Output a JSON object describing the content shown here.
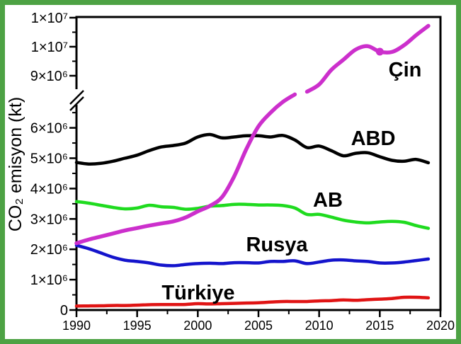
{
  "frame": {
    "border_color": "#4DA244",
    "background": "#FFFFFF"
  },
  "chart_data": {
    "type": "line",
    "title": "",
    "xlabel": "",
    "ylabel": "CO₂ emisyon (kt)",
    "x_range": [
      1990,
      2020
    ],
    "x_major_ticks": [
      1990,
      1995,
      2000,
      2005,
      2010,
      2015,
      2020
    ],
    "x_tick_labels": [
      "1990",
      "1995",
      "2000",
      "2005",
      "2010",
      "2015",
      "2020"
    ],
    "x_minor_ticks": [
      1992.5,
      1997.5,
      2002.5,
      2007.5,
      2012.5,
      2017.5
    ],
    "y_axis_break": {
      "lower_panel_max": 6500000,
      "upper_panel_min": 8500000
    },
    "y_lower_major_ticks": [
      0,
      1000000,
      2000000,
      3000000,
      4000000,
      5000000,
      6000000
    ],
    "y_lower_tick_labels": [
      "0",
      "1×10⁶",
      "2×10⁶",
      "3×10⁶",
      "4×10⁶",
      "5×10⁶",
      "6×10⁶"
    ],
    "y_lower_minor_ticks": [
      500000,
      1500000,
      2500000,
      3500000,
      4500000,
      5500000,
      6500000
    ],
    "y_upper_major_ticks": [
      9000000,
      10000000,
      11000000
    ],
    "y_upper_tick_labels": [
      "9×10⁶",
      "1×10⁷",
      "1×10⁷"
    ],
    "y_upper_minor_ticks": [
      9500000,
      10500000
    ],
    "legend_position": "inline-labels",
    "grid": false,
    "years": [
      1990,
      1991,
      1992,
      1993,
      1994,
      1995,
      1996,
      1997,
      1998,
      1999,
      2000,
      2001,
      2002,
      2003,
      2004,
      2005,
      2006,
      2007,
      2008,
      2009,
      2010,
      2011,
      2012,
      2013,
      2014,
      2015,
      2016,
      2017,
      2018,
      2019
    ],
    "series": [
      {
        "id": "abd",
        "name": "ABD",
        "color": "#000000",
        "line_width": 4.5,
        "values": [
          4860000,
          4810000,
          4830000,
          4900000,
          5000000,
          5100000,
          5250000,
          5370000,
          5420000,
          5500000,
          5700000,
          5780000,
          5670000,
          5700000,
          5740000,
          5740000,
          5700000,
          5750000,
          5600000,
          5350000,
          5400000,
          5250000,
          5080000,
          5160000,
          5180000,
          5050000,
          4930000,
          4900000,
          4960000,
          4850000
        ]
      },
      {
        "id": "ab",
        "name": "AB",
        "color": "#1FDB1F",
        "line_width": 4.5,
        "values": [
          3570000,
          3520000,
          3450000,
          3380000,
          3330000,
          3360000,
          3450000,
          3400000,
          3380000,
          3320000,
          3350000,
          3420000,
          3440000,
          3480000,
          3480000,
          3460000,
          3460000,
          3440000,
          3360000,
          3150000,
          3150000,
          3060000,
          2960000,
          2900000,
          2870000,
          2900000,
          2920000,
          2890000,
          2780000,
          2690000
        ]
      },
      {
        "id": "rusya",
        "name": "Rusya",
        "color": "#1414CC",
        "line_width": 4.5,
        "values": [
          2130000,
          2020000,
          1880000,
          1740000,
          1640000,
          1600000,
          1550000,
          1480000,
          1460000,
          1500000,
          1530000,
          1540000,
          1530000,
          1560000,
          1560000,
          1550000,
          1600000,
          1600000,
          1620000,
          1530000,
          1580000,
          1640000,
          1650000,
          1620000,
          1600000,
          1550000,
          1550000,
          1580000,
          1630000,
          1680000
        ]
      },
      {
        "id": "turkiye",
        "name": "Türkiye",
        "color": "#E01414",
        "line_width": 4.5,
        "values": [
          130000,
          135000,
          140000,
          150000,
          150000,
          160000,
          175000,
          180000,
          180000,
          185000,
          210000,
          200000,
          210000,
          220000,
          230000,
          240000,
          260000,
          280000,
          280000,
          280000,
          300000,
          310000,
          330000,
          320000,
          340000,
          360000,
          380000,
          420000,
          420000,
          400000
        ]
      },
      {
        "id": "cin",
        "name": "Çin",
        "color": "#CC2FCC",
        "line_width": 5.5,
        "values": [
          2200000,
          2320000,
          2420000,
          2520000,
          2620000,
          2700000,
          2780000,
          2850000,
          2920000,
          3050000,
          3250000,
          3430000,
          3720000,
          4400000,
          5300000,
          6050000,
          6500000,
          6850000,
          7100000,
          8450000,
          8700000,
          9200000,
          9550000,
          9900000,
          10020000,
          9830000,
          9820000,
          10050000,
          10400000,
          10720000
        ],
        "marker": {
          "year": 2015,
          "value": 9830000,
          "shape": "circle"
        }
      }
    ]
  }
}
